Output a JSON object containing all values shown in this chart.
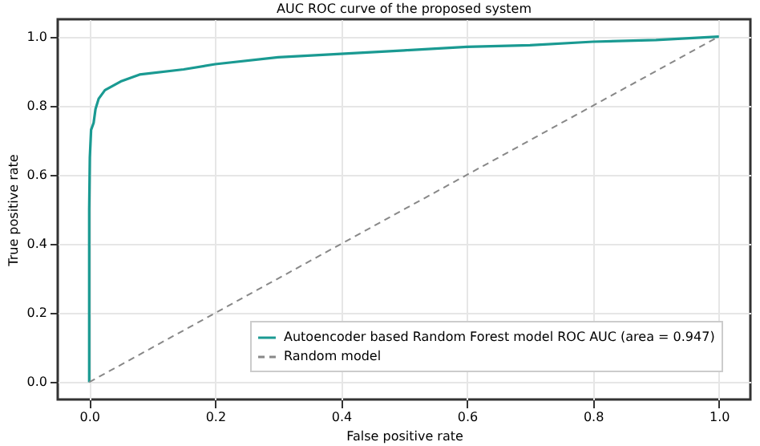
{
  "chart_data": {
    "type": "line",
    "title": "AUC ROC curve of the proposed system",
    "xlabel": "False positive rate",
    "ylabel": "True positive rate",
    "xlim": [
      -0.05,
      1.05
    ],
    "ylim": [
      -0.05,
      1.05
    ],
    "xticks": [
      {
        "value": 0,
        "label": "0.0"
      },
      0.2,
      0.4,
      0.6,
      0.8,
      {
        "value": 1,
        "label": "1.0"
      }
    ],
    "yticks": [
      {
        "value": 0,
        "label": "0.0"
      },
      0.2,
      0.4,
      0.6,
      0.8,
      {
        "value": 1,
        "label": "1.0"
      }
    ],
    "grid": true,
    "legend": "bottom right",
    "series": [
      {
        "name": "Autoencoder based Random Forest model ROC AUC (area = 0.947)",
        "color": "#1a9a92",
        "line_style": "solid",
        "x": [
          0,
          0,
          0.001,
          0.003,
          0.007,
          0.01,
          0.015,
          0.025,
          0.05,
          0.08,
          0.15,
          0.2,
          0.3,
          0.4,
          0.5,
          0.6,
          0.7,
          0.8,
          0.9,
          1
        ],
        "values": [
          0,
          0.5,
          0.65,
          0.73,
          0.75,
          0.79,
          0.82,
          0.845,
          0.87,
          0.89,
          0.905,
          0.92,
          0.94,
          0.95,
          0.96,
          0.97,
          0.975,
          0.985,
          0.99,
          1
        ]
      },
      {
        "name": "Random model",
        "color": "#888888",
        "line_style": "dashed",
        "x": [
          0,
          1
        ],
        "values": [
          0,
          1
        ]
      }
    ]
  }
}
